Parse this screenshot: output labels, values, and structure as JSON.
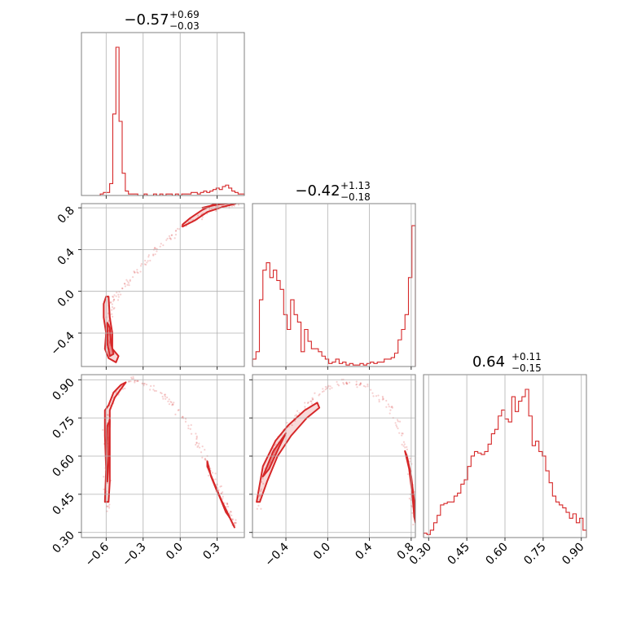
{
  "chart_data": {
    "type": "corner",
    "color": "#d62728",
    "parameters": [
      {
        "median": "−0.57",
        "plus": "+0.69",
        "minus": "−0.03",
        "range": [
          -0.8,
          0.52
        ],
        "ticks": [
          -0.6,
          -0.3,
          0.0,
          0.3
        ],
        "tick_labels": [
          "−0.6",
          "−0.3",
          "0.0",
          "0.3"
        ]
      },
      {
        "median": "−0.42",
        "plus": "+1.13",
        "minus": "−0.18",
        "range": [
          -0.72,
          0.84
        ],
        "ticks": [
          -0.4,
          0.0,
          0.4,
          0.8
        ],
        "tick_labels": [
          "−0.4",
          "0.0",
          "0.4",
          "0.8"
        ]
      },
      {
        "median": "0.64",
        "plus": "+0.11",
        "minus": "−0.15",
        "range": [
          0.28,
          0.92
        ],
        "ticks": [
          0.3,
          0.45,
          0.6,
          0.75,
          0.9
        ],
        "tick_labels": [
          "0.30",
          "0.45",
          "0.60",
          "0.75",
          "0.90"
        ]
      }
    ],
    "histograms": [
      {
        "param": 0,
        "values": [
          0,
          0,
          0,
          0,
          0,
          0,
          0.01,
          0.02,
          0.02,
          0.08,
          0.55,
          1.0,
          0.5,
          0.15,
          0.03,
          0.01,
          0.01,
          0.01,
          0,
          0,
          0.01,
          0,
          0,
          0.01,
          0,
          0.01,
          0,
          0.01,
          0.01,
          0,
          0.01,
          0,
          0.01,
          0.01,
          0.01,
          0.02,
          0.02,
          0.01,
          0.02,
          0.03,
          0.02,
          0.03,
          0.04,
          0.05,
          0.04,
          0.06,
          0.07,
          0.05,
          0.03,
          0.02,
          0.01,
          0.01
        ]
      },
      {
        "param": 1,
        "values": [
          0.05,
          0.1,
          0.45,
          0.65,
          0.7,
          0.6,
          0.65,
          0.58,
          0.52,
          0.35,
          0.25,
          0.45,
          0.35,
          0.3,
          0.1,
          0.25,
          0.17,
          0.12,
          0.12,
          0.1,
          0.07,
          0.05,
          0.02,
          0.03,
          0.05,
          0.02,
          0.03,
          0.01,
          0.02,
          0.01,
          0.01,
          0.02,
          0.01,
          0.02,
          0.03,
          0.02,
          0.03,
          0.03,
          0.05,
          0.05,
          0.06,
          0.09,
          0.18,
          0.25,
          0.35,
          0.6,
          0.95
        ]
      },
      {
        "param": 2,
        "values": [
          0.03,
          0.02,
          0.05,
          0.1,
          0.15,
          0.22,
          0.23,
          0.24,
          0.24,
          0.28,
          0.3,
          0.36,
          0.39,
          0.48,
          0.55,
          0.58,
          0.57,
          0.56,
          0.58,
          0.63,
          0.7,
          0.73,
          0.82,
          0.86,
          0.8,
          0.78,
          0.95,
          0.85,
          0.92,
          0.95,
          1.0,
          0.82,
          0.62,
          0.65,
          0.58,
          0.55,
          0.45,
          0.37,
          0.28,
          0.24,
          0.22,
          0.2,
          0.17,
          0.13,
          0.16,
          0.1,
          0.13,
          0.05
        ]
      }
    ],
    "scatter_panels": [
      {
        "x_param": 0,
        "y_param": 1,
        "ridge": [
          [
            -0.58,
            -0.58
          ],
          [
            -0.59,
            -0.45
          ],
          [
            -0.58,
            -0.3
          ],
          [
            -0.55,
            -0.1
          ],
          [
            -0.45,
            0.05
          ],
          [
            -0.35,
            0.2
          ],
          [
            -0.2,
            0.38
          ],
          [
            -0.05,
            0.55
          ],
          [
            0.1,
            0.68
          ],
          [
            0.25,
            0.78
          ],
          [
            0.38,
            0.83
          ],
          [
            0.48,
            0.85
          ]
        ],
        "contours": [
          {
            "points": [
              [
                -0.6,
                -0.05
              ],
              [
                -0.58,
                -0.05
              ],
              [
                -0.57,
                -0.25
              ],
              [
                -0.55,
                -0.4
              ],
              [
                -0.55,
                -0.55
              ],
              [
                -0.5,
                -0.62
              ],
              [
                -0.52,
                -0.68
              ],
              [
                -0.58,
                -0.64
              ],
              [
                -0.61,
                -0.55
              ],
              [
                -0.6,
                -0.4
              ],
              [
                -0.62,
                -0.25
              ],
              [
                -0.62,
                -0.12
              ]
            ],
            "fill": 0.35
          },
          {
            "points": [
              [
                -0.59,
                -0.3
              ],
              [
                -0.57,
                -0.35
              ],
              [
                -0.56,
                -0.5
              ],
              [
                -0.54,
                -0.6
              ],
              [
                -0.57,
                -0.62
              ],
              [
                -0.59,
                -0.5
              ]
            ],
            "fill": 0.85
          },
          {
            "points": [
              [
                0.02,
                0.62
              ],
              [
                0.12,
                0.68
              ],
              [
                0.22,
                0.76
              ],
              [
                0.35,
                0.81
              ],
              [
                0.45,
                0.84
              ],
              [
                0.45,
                0.86
              ],
              [
                0.3,
                0.85
              ],
              [
                0.18,
                0.78
              ],
              [
                0.08,
                0.7
              ],
              [
                0.02,
                0.64
              ]
            ],
            "fill": 0.35
          },
          {
            "points": [
              [
                0.18,
                0.8
              ],
              [
                0.32,
                0.84
              ],
              [
                0.44,
                0.85
              ],
              [
                0.3,
                0.83
              ]
            ],
            "fill": 0.85
          }
        ]
      },
      {
        "x_param": 0,
        "y_param": 2,
        "ridge": [
          [
            -0.58,
            0.38
          ],
          [
            -0.59,
            0.55
          ],
          [
            -0.6,
            0.7
          ],
          [
            -0.55,
            0.83
          ],
          [
            -0.4,
            0.9
          ],
          [
            -0.25,
            0.88
          ],
          [
            -0.1,
            0.82
          ],
          [
            0.05,
            0.74
          ],
          [
            0.15,
            0.64
          ],
          [
            0.25,
            0.54
          ],
          [
            0.33,
            0.45
          ],
          [
            0.4,
            0.37
          ],
          [
            0.44,
            0.33
          ]
        ],
        "contours": [
          {
            "points": [
              [
                -0.61,
                0.78
              ],
              [
                -0.58,
                0.8
              ],
              [
                -0.54,
                0.85
              ],
              [
                -0.48,
                0.88
              ],
              [
                -0.44,
                0.89
              ],
              [
                -0.47,
                0.87
              ],
              [
                -0.53,
                0.83
              ],
              [
                -0.57,
                0.78
              ],
              [
                -0.57,
                0.65
              ],
              [
                -0.57,
                0.5
              ],
              [
                -0.58,
                0.42
              ],
              [
                -0.61,
                0.42
              ],
              [
                -0.6,
                0.55
              ],
              [
                -0.61,
                0.68
              ]
            ],
            "fill": 0.35
          },
          {
            "points": [
              [
                -0.59,
                0.72
              ],
              [
                -0.57,
                0.74
              ],
              [
                -0.58,
                0.58
              ],
              [
                -0.59,
                0.5
              ],
              [
                -0.6,
                0.6
              ]
            ],
            "fill": 0.85
          },
          {
            "points": [
              [
                0.22,
                0.58
              ],
              [
                0.25,
                0.52
              ],
              [
                0.3,
                0.46
              ],
              [
                0.36,
                0.4
              ],
              [
                0.42,
                0.34
              ],
              [
                0.44,
                0.32
              ],
              [
                0.4,
                0.36
              ],
              [
                0.34,
                0.42
              ],
              [
                0.27,
                0.5
              ],
              [
                0.22,
                0.56
              ]
            ],
            "fill": 0.35
          },
          {
            "points": [
              [
                0.32,
                0.44
              ],
              [
                0.37,
                0.38
              ],
              [
                0.4,
                0.36
              ],
              [
                0.35,
                0.41
              ]
            ],
            "fill": 0.85
          }
        ]
      },
      {
        "x_param": 1,
        "y_param": 2,
        "ridge": [
          [
            -0.68,
            0.38
          ],
          [
            -0.6,
            0.55
          ],
          [
            -0.45,
            0.68
          ],
          [
            -0.25,
            0.78
          ],
          [
            -0.05,
            0.86
          ],
          [
            0.15,
            0.89
          ],
          [
            0.35,
            0.88
          ],
          [
            0.55,
            0.82
          ],
          [
            0.7,
            0.7
          ],
          [
            0.78,
            0.56
          ],
          [
            0.82,
            0.42
          ],
          [
            0.84,
            0.32
          ]
        ],
        "contours": [
          {
            "points": [
              [
                -0.68,
                0.42
              ],
              [
                -0.62,
                0.56
              ],
              [
                -0.5,
                0.66
              ],
              [
                -0.38,
                0.72
              ],
              [
                -0.22,
                0.78
              ],
              [
                -0.1,
                0.81
              ],
              [
                -0.08,
                0.79
              ],
              [
                -0.2,
                0.75
              ],
              [
                -0.35,
                0.68
              ],
              [
                -0.48,
                0.6
              ],
              [
                -0.58,
                0.5
              ],
              [
                -0.65,
                0.42
              ]
            ],
            "fill": 0.35
          },
          {
            "points": [
              [
                -0.62,
                0.52
              ],
              [
                -0.52,
                0.62
              ],
              [
                -0.4,
                0.69
              ],
              [
                -0.46,
                0.64
              ],
              [
                -0.56,
                0.55
              ]
            ],
            "fill": 0.85
          },
          {
            "points": [
              [
                0.74,
                0.62
              ],
              [
                0.78,
                0.55
              ],
              [
                0.81,
                0.45
              ],
              [
                0.83,
                0.36
              ],
              [
                0.84,
                0.34
              ],
              [
                0.83,
                0.42
              ],
              [
                0.8,
                0.52
              ],
              [
                0.76,
                0.6
              ]
            ],
            "fill": 0.35
          }
        ]
      }
    ]
  }
}
